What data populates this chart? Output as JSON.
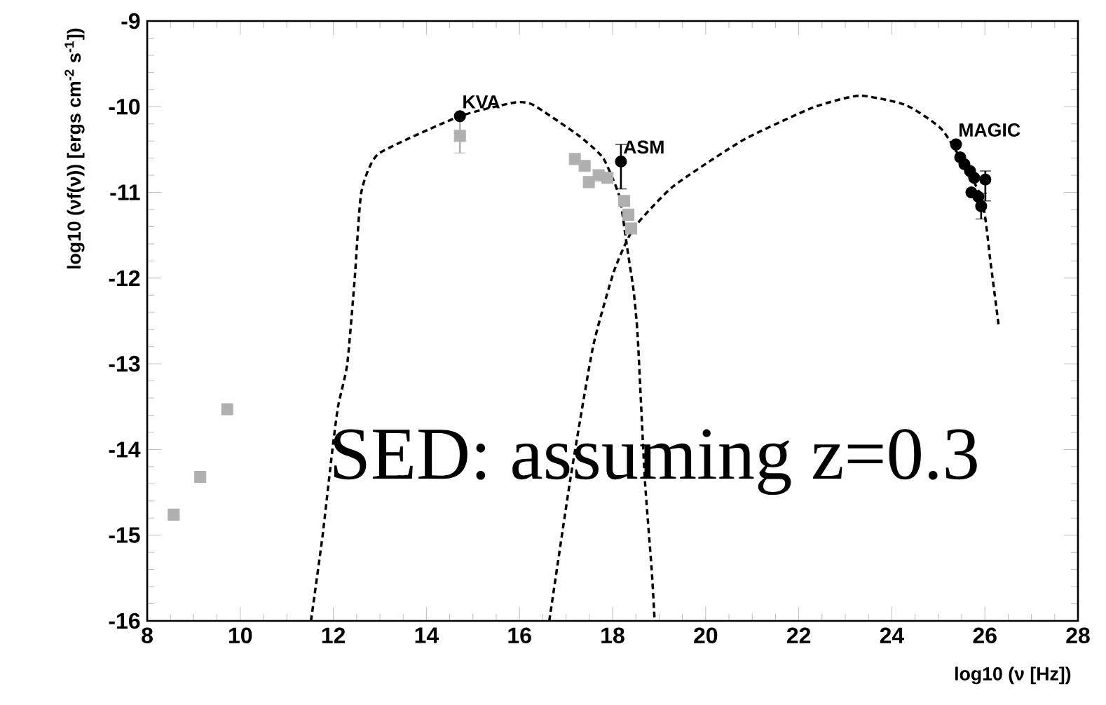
{
  "chart_data": {
    "type": "scatter",
    "xlabel": "log10 (ν [Hz])",
    "ylabel": "log10 (νf(ν)) [ergs cm$^{-2}$ s$^{-1}$])",
    "xlim": [
      8,
      28
    ],
    "xticks": [
      8,
      10,
      12,
      14,
      16,
      18,
      20,
      22,
      24,
      26,
      28
    ],
    "ylim": [
      -16,
      -9
    ],
    "yticks": [
      -16,
      -15,
      -14,
      -13,
      -12,
      -11,
      -10,
      -9
    ],
    "series": [
      {
        "type": "line",
        "line_style": "dashed",
        "marker": "none",
        "color": "#000000",
        "x": [
          11.52,
          11.77,
          11.98,
          12.1,
          12.3,
          12.46,
          12.6,
          12.97,
          14.72,
          15.9,
          16.3,
          17.28,
          17.8,
          18.15,
          18.3,
          18.45,
          18.54,
          18.69,
          18.84,
          18.9
        ],
        "values": [
          -16,
          -15,
          -14,
          -13.5,
          -13,
          -12,
          -11,
          -10.55,
          -10.11,
          -9.95,
          -9.98,
          -10.34,
          -10.6,
          -11.05,
          -11.6,
          -12.14,
          -12.68,
          -14.32,
          -15.4,
          -15.96
        ]
      },
      {
        "type": "line",
        "line_style": "dashed",
        "marker": "none",
        "color": "#000000",
        "x": [
          16.64,
          17.1,
          17.58,
          18.03,
          18.45,
          19.3,
          20.8,
          22.3,
          23.3,
          24.3,
          25.1,
          25.92,
          26.12,
          26.3
        ],
        "values": [
          -16,
          -14.32,
          -12.8,
          -11.92,
          -11.42,
          -10.93,
          -10.39,
          -10.01,
          -9.87,
          -9.98,
          -10.28,
          -11.05,
          -11.81,
          -12.57
        ]
      },
      {
        "marker": "square",
        "color": "#b0b0b0",
        "x": [
          8.57,
          9.14,
          9.72,
          14.72,
          17.19,
          17.4,
          17.49,
          17.7,
          17.89,
          18.25,
          18.34,
          18.4
        ],
        "values": [
          -14.76,
          -14.32,
          -13.53,
          -10.34,
          -10.61,
          -10.69,
          -10.88,
          -10.8,
          -10.83,
          -11.1,
          -11.26,
          -11.42
        ],
        "errors": [
          null,
          null,
          null,
          0.2,
          null,
          null,
          null,
          null,
          null,
          null,
          null,
          null
        ]
      },
      {
        "marker": "circle",
        "color": "#000000",
        "x": [
          14.72,
          18.18,
          25.38,
          25.47,
          25.56,
          25.68,
          25.77,
          25.71,
          25.86,
          25.92,
          26.01
        ],
        "values": [
          -10.11,
          -10.64,
          -10.44,
          -10.59,
          -10.67,
          -10.75,
          -10.83,
          -11.0,
          -11.05,
          -11.16,
          -10.85
        ],
        "errors": [
          null,
          [
            -10.96,
            -10.44
          ],
          null,
          null,
          null,
          null,
          null,
          null,
          null,
          0.15,
          [
            -11.1,
            -10.75
          ]
        ]
      }
    ],
    "annotations": [
      {
        "text": "KVA",
        "x": 14.72,
        "y": -10.11
      },
      {
        "text": "ASM",
        "x": 18.18,
        "y": -10.64
      },
      {
        "text": "MAGIC",
        "x": 25.38,
        "y": -10.44
      },
      "SED: assuming z=0.3"
    ]
  }
}
